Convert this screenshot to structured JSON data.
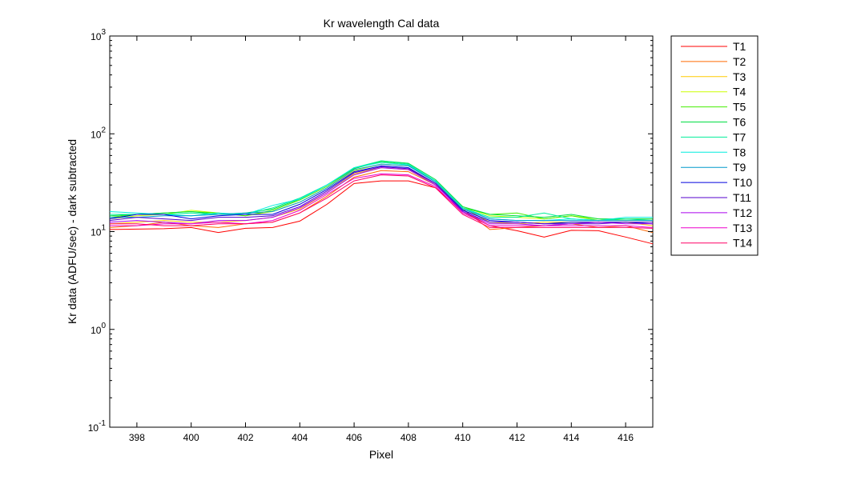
{
  "chart_data": {
    "type": "line",
    "title": "Kr wavelength Cal data",
    "xlabel": "Pixel",
    "ylabel": "Kr data (ADFU/sec) - dark subtracted",
    "yscale": "log",
    "xlim": [
      397,
      417
    ],
    "ylim": [
      0.1,
      1000
    ],
    "xticks": [
      398,
      400,
      402,
      404,
      406,
      408,
      410,
      412,
      414,
      416
    ],
    "yticks": [
      {
        "value": 0.1,
        "base": "10",
        "exp": "-1"
      },
      {
        "value": 1,
        "base": "10",
        "exp": "0"
      },
      {
        "value": 10,
        "base": "10",
        "exp": "1"
      },
      {
        "value": 100,
        "base": "10",
        "exp": "2"
      },
      {
        "value": 1000,
        "base": "10",
        "exp": "3"
      }
    ],
    "grid": false,
    "legend_position": "outside-right",
    "x": [
      397,
      398,
      399,
      400,
      401,
      402,
      403,
      404,
      405,
      406,
      407,
      408,
      409,
      410,
      411,
      412,
      413,
      414,
      415,
      416,
      417
    ],
    "series": [
      {
        "name": "T1",
        "color": "#ff0000",
        "values": [
          10.5,
          10.6,
          10.7,
          11.0,
          9.8,
          10.8,
          11.0,
          12.8,
          19.0,
          31.0,
          33.0,
          33.0,
          28.0,
          16.0,
          11.5,
          10.2,
          8.8,
          10.3,
          10.2,
          8.8,
          7.5
        ]
      },
      {
        "name": "T2",
        "color": "#ff6a00",
        "values": [
          11.0,
          11.5,
          12.5,
          11.5,
          11.0,
          12.0,
          12.5,
          15.5,
          23.0,
          36.0,
          42.0,
          41.0,
          30.0,
          17.0,
          10.5,
          11.0,
          11.5,
          12.0,
          11.0,
          11.5,
          9.8
        ]
      },
      {
        "name": "T3",
        "color": "#ffcc00",
        "values": [
          12.0,
          12.5,
          13.0,
          12.5,
          12.5,
          13.0,
          14.0,
          17.0,
          25.0,
          39.0,
          45.0,
          43.0,
          31.0,
          17.5,
          12.5,
          12.0,
          12.5,
          12.5,
          12.5,
          12.5,
          11.5
        ]
      },
      {
        "name": "T4",
        "color": "#ccff00",
        "values": [
          13.5,
          14.5,
          15.0,
          16.5,
          15.5,
          14.5,
          16.0,
          20.0,
          28.0,
          42.0,
          49.0,
          47.0,
          33.0,
          18.0,
          14.5,
          14.0,
          13.5,
          14.5,
          13.5,
          13.0,
          13.0
        ]
      },
      {
        "name": "T5",
        "color": "#44ee00",
        "values": [
          14.0,
          15.0,
          15.5,
          16.0,
          15.5,
          14.5,
          16.5,
          21.0,
          29.0,
          44.0,
          52.0,
          48.0,
          33.0,
          17.5,
          15.0,
          15.5,
          13.5,
          14.5,
          13.0,
          13.5,
          13.5
        ]
      },
      {
        "name": "T6",
        "color": "#00dd44",
        "values": [
          14.5,
          15.0,
          15.5,
          16.0,
          15.0,
          15.5,
          17.0,
          21.5,
          30.0,
          44.0,
          53.0,
          50.0,
          34.0,
          18.0,
          15.0,
          14.5,
          14.0,
          15.0,
          13.5,
          13.5,
          13.5
        ]
      },
      {
        "name": "T7",
        "color": "#00ee99",
        "values": [
          15.0,
          15.0,
          15.0,
          15.5,
          15.0,
          15.0,
          17.5,
          22.0,
          30.0,
          45.0,
          53.0,
          49.0,
          33.0,
          17.5,
          14.0,
          14.0,
          15.5,
          13.5,
          13.0,
          13.5,
          13.0
        ]
      },
      {
        "name": "T8",
        "color": "#00eedd",
        "values": [
          16.0,
          15.5,
          15.0,
          14.5,
          15.5,
          15.0,
          18.5,
          21.5,
          30.0,
          45.0,
          51.0,
          48.0,
          33.0,
          17.5,
          13.5,
          13.0,
          13.0,
          13.5,
          13.0,
          14.0,
          14.0
        ]
      },
      {
        "name": "T9",
        "color": "#0099cc",
        "values": [
          14.0,
          14.0,
          14.5,
          14.5,
          15.0,
          15.5,
          16.0,
          20.0,
          28.0,
          43.0,
          49.0,
          47.0,
          32.0,
          17.0,
          13.5,
          13.0,
          13.0,
          13.0,
          13.0,
          13.0,
          13.0
        ]
      },
      {
        "name": "T10",
        "color": "#0000dd",
        "values": [
          13.5,
          15.0,
          15.0,
          13.5,
          14.5,
          15.0,
          15.0,
          19.0,
          27.0,
          41.0,
          47.0,
          45.0,
          31.0,
          16.5,
          13.0,
          12.5,
          12.0,
          12.5,
          12.5,
          12.5,
          12.0
        ]
      },
      {
        "name": "T11",
        "color": "#5500cc",
        "values": [
          13.0,
          14.0,
          13.5,
          13.0,
          14.0,
          14.0,
          14.5,
          18.0,
          26.0,
          40.0,
          46.0,
          44.0,
          31.0,
          16.0,
          12.5,
          12.5,
          12.0,
          12.0,
          12.0,
          12.5,
          12.5
        ]
      },
      {
        "name": "T12",
        "color": "#aa00ee",
        "values": [
          12.5,
          13.0,
          12.5,
          12.0,
          13.0,
          13.0,
          14.0,
          17.5,
          25.0,
          38.0,
          45.0,
          43.0,
          30.0,
          16.0,
          12.0,
          12.0,
          11.5,
          12.0,
          12.5,
          12.0,
          12.0
        ]
      },
      {
        "name": "T13",
        "color": "#ee00cc",
        "values": [
          11.5,
          11.5,
          12.0,
          12.0,
          12.5,
          12.0,
          13.0,
          16.5,
          24.0,
          35.0,
          39.0,
          38.0,
          29.0,
          15.5,
          11.5,
          11.5,
          11.5,
          11.5,
          11.5,
          11.5,
          11.0
        ]
      },
      {
        "name": "T14",
        "color": "#ff0066",
        "values": [
          12.0,
          12.0,
          11.5,
          11.5,
          12.0,
          12.0,
          12.5,
          15.5,
          22.0,
          33.0,
          38.0,
          37.0,
          28.0,
          15.0,
          11.0,
          11.0,
          11.0,
          11.0,
          11.0,
          11.0,
          10.8
        ]
      }
    ]
  }
}
